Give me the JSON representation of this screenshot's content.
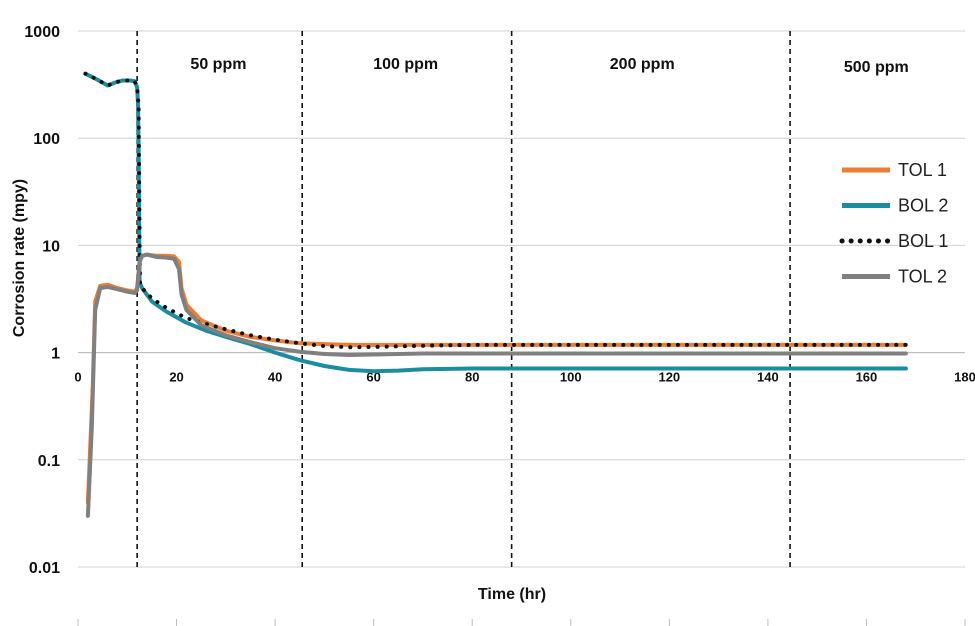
{
  "chart_data": {
    "type": "line",
    "title": "",
    "xlabel": "Time (hr)",
    "ylabel": "Corrosion rate (mpy)",
    "y_scale": "log",
    "xlim": [
      0,
      180
    ],
    "ylim": [
      0.01,
      1000
    ],
    "x_ticks": [
      "0",
      "20",
      "40",
      "60",
      "80",
      "100",
      "120",
      "140",
      "160",
      "180"
    ],
    "y_ticks": [
      "1000",
      "100",
      "10",
      "1",
      "0.1",
      "0.01"
    ],
    "grid": "horizontal",
    "legend_position": "right",
    "phase_boundaries": [
      12,
      45.5,
      88,
      144.5
    ],
    "phase_labels": [
      {
        "label": "50 ppm",
        "x": 28.5
      },
      {
        "label": "100 ppm",
        "x": 66.5
      },
      {
        "label": "200 ppm",
        "x": 114.5
      },
      {
        "label": "500 ppm",
        "x": 162
      }
    ],
    "series": [
      {
        "name": "TOL 1",
        "color": "#ED7D31",
        "style": "solid",
        "points": [
          [
            2,
            0.04
          ],
          [
            3,
            0.5
          ],
          [
            3.5,
            3
          ],
          [
            4.5,
            4.2
          ],
          [
            6,
            4.3
          ],
          [
            8,
            4
          ],
          [
            10,
            3.8
          ],
          [
            11.5,
            3.7
          ],
          [
            12,
            4
          ],
          [
            12.5,
            7
          ],
          [
            13,
            8
          ],
          [
            14,
            8.2
          ],
          [
            16,
            8
          ],
          [
            18,
            8
          ],
          [
            19.5,
            7.9
          ],
          [
            20.5,
            7
          ],
          [
            21,
            4
          ],
          [
            22,
            2.8
          ],
          [
            25,
            2
          ],
          [
            30,
            1.6
          ],
          [
            35,
            1.4
          ],
          [
            40,
            1.3
          ],
          [
            45,
            1.22
          ],
          [
            50,
            1.2
          ],
          [
            55,
            1.18
          ],
          [
            60,
            1.18
          ],
          [
            80,
            1.18
          ],
          [
            100,
            1.18
          ],
          [
            120,
            1.18
          ],
          [
            140,
            1.18
          ],
          [
            168,
            1.18
          ]
        ]
      },
      {
        "name": "BOL 2",
        "color": "#1A8EA0",
        "style": "solid",
        "points": [
          [
            1.5,
            400
          ],
          [
            3,
            370
          ],
          [
            4,
            350
          ],
          [
            5,
            330
          ],
          [
            6,
            310
          ],
          [
            7.5,
            330
          ],
          [
            9,
            345
          ],
          [
            10.5,
            345
          ],
          [
            11.5,
            340
          ],
          [
            12,
            300
          ],
          [
            12.2,
            200
          ],
          [
            12.3,
            80
          ],
          [
            12.4,
            20
          ],
          [
            12.5,
            4.5
          ],
          [
            13,
            4
          ],
          [
            15,
            3
          ],
          [
            18,
            2.4
          ],
          [
            22,
            1.9
          ],
          [
            26,
            1.6
          ],
          [
            30,
            1.4
          ],
          [
            35,
            1.2
          ],
          [
            40,
            1.0
          ],
          [
            45,
            0.85
          ],
          [
            50,
            0.75
          ],
          [
            55,
            0.69
          ],
          [
            60,
            0.67
          ],
          [
            65,
            0.68
          ],
          [
            70,
            0.7
          ],
          [
            80,
            0.71
          ],
          [
            100,
            0.71
          ],
          [
            140,
            0.71
          ],
          [
            168,
            0.71
          ]
        ]
      },
      {
        "name": "BOL 1",
        "color": "#111111",
        "style": "dotted",
        "points": [
          [
            1.5,
            400
          ],
          [
            3,
            370
          ],
          [
            4,
            350
          ],
          [
            5,
            330
          ],
          [
            6,
            310
          ],
          [
            7.5,
            330
          ],
          [
            9,
            345
          ],
          [
            10.5,
            345
          ],
          [
            11.5,
            340
          ],
          [
            12,
            300
          ],
          [
            12.3,
            200
          ],
          [
            12.4,
            50
          ],
          [
            12.5,
            10
          ],
          [
            12.6,
            4.2
          ],
          [
            13,
            4
          ],
          [
            15,
            3.2
          ],
          [
            18,
            2.6
          ],
          [
            22,
            2.1
          ],
          [
            26,
            1.85
          ],
          [
            30,
            1.65
          ],
          [
            35,
            1.45
          ],
          [
            40,
            1.32
          ],
          [
            45,
            1.22
          ],
          [
            50,
            1.15
          ],
          [
            55,
            1.12
          ],
          [
            60,
            1.13
          ],
          [
            70,
            1.16
          ],
          [
            80,
            1.18
          ],
          [
            100,
            1.18
          ],
          [
            140,
            1.18
          ],
          [
            168,
            1.18
          ]
        ]
      },
      {
        "name": "TOL 2",
        "color": "#808080",
        "style": "solid",
        "points": [
          [
            2,
            0.03
          ],
          [
            2.8,
            0.2
          ],
          [
            3.5,
            2.5
          ],
          [
            4.5,
            4
          ],
          [
            6,
            4.1
          ],
          [
            8,
            3.9
          ],
          [
            10,
            3.7
          ],
          [
            11.5,
            3.6
          ],
          [
            12,
            3.8
          ],
          [
            12.5,
            7
          ],
          [
            13,
            8
          ],
          [
            14,
            8.2
          ],
          [
            16,
            7.8
          ],
          [
            18,
            7.7
          ],
          [
            19.5,
            7.5
          ],
          [
            20.5,
            6
          ],
          [
            21,
            3.5
          ],
          [
            22,
            2.5
          ],
          [
            25,
            1.8
          ],
          [
            30,
            1.45
          ],
          [
            35,
            1.25
          ],
          [
            40,
            1.1
          ],
          [
            45,
            1.02
          ],
          [
            50,
            0.97
          ],
          [
            55,
            0.95
          ],
          [
            60,
            0.96
          ],
          [
            70,
            0.98
          ],
          [
            80,
            0.98
          ],
          [
            100,
            0.98
          ],
          [
            140,
            0.98
          ],
          [
            168,
            0.98
          ]
        ]
      }
    ]
  }
}
